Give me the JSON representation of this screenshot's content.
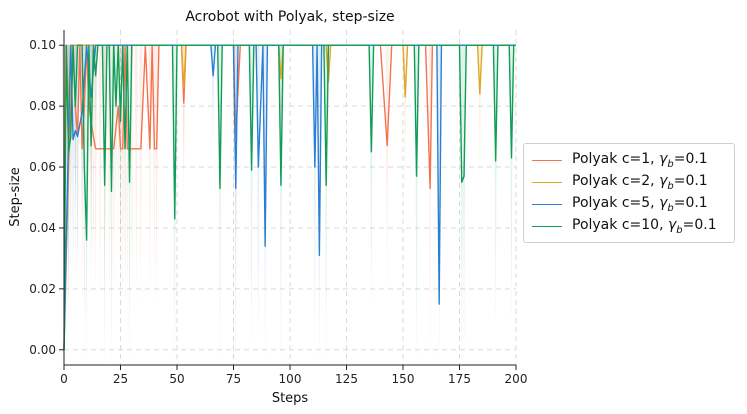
{
  "chart_data": {
    "type": "line",
    "title": "Acrobot with Polyak, step-size",
    "xlabel": "Steps",
    "ylabel": "Step-size",
    "xlim": [
      0,
      200
    ],
    "ylim": [
      -0.005,
      0.105
    ],
    "xticks": [
      "0",
      "25",
      "50",
      "75",
      "100",
      "125",
      "150",
      "175",
      "200"
    ],
    "yticks": [
      "0.00",
      "0.02",
      "0.04",
      "0.06",
      "0.08",
      "0.10"
    ],
    "grid": true,
    "legend_position": "right-outside",
    "series": [
      {
        "name": "Polyak c=1, γb=0.1",
        "label_main": "Polyak c=1, ",
        "label_gamma": "γ",
        "label_sub": "b",
        "label_tail": "=0.1",
        "color": "#f4734f",
        "band_color": "#f4734f",
        "x": [
          0,
          2,
          3,
          4,
          5,
          6,
          7,
          8,
          9,
          10,
          11,
          12,
          13,
          14,
          16,
          18,
          20,
          22,
          24,
          25,
          26,
          27,
          28,
          30,
          32,
          34,
          36,
          38,
          39,
          40,
          41,
          42,
          44,
          46,
          48,
          52,
          53,
          54,
          60,
          70,
          75,
          76,
          78,
          90,
          92,
          100,
          110,
          120,
          125,
          140,
          143,
          145,
          160,
          162,
          163,
          170,
          185,
          200
        ],
        "y": [
          0.0,
          0.06,
          0.08,
          0.1,
          0.08,
          0.07,
          0.1,
          0.066,
          0.08,
          0.1,
          0.08,
          0.075,
          0.07,
          0.066,
          0.066,
          0.066,
          0.066,
          0.066,
          0.08,
          0.066,
          0.066,
          0.1,
          0.066,
          0.066,
          0.066,
          0.066,
          0.1,
          0.066,
          0.1,
          0.066,
          0.066,
          0.1,
          0.1,
          0.1,
          0.1,
          0.1,
          0.081,
          0.1,
          0.1,
          0.1,
          0.1,
          0.07,
          0.1,
          0.1,
          0.1,
          0.1,
          0.1,
          0.1,
          0.1,
          0.1,
          0.067,
          0.1,
          0.1,
          0.053,
          0.1,
          0.1,
          0.1,
          0.1
        ]
      },
      {
        "name": "Polyak c=2, γb=0.1",
        "label_main": "Polyak c=2, ",
        "label_gamma": "γ",
        "label_sub": "b",
        "label_tail": "=0.1",
        "color": "#e0a526",
        "band_color": "#e0a526",
        "x": [
          0,
          1,
          2,
          3,
          4,
          6,
          8,
          10,
          12,
          14,
          16,
          20,
          25,
          30,
          40,
          50,
          52,
          53,
          54,
          60,
          70,
          80,
          90,
          95,
          96,
          97,
          100,
          105,
          110,
          116,
          117,
          118,
          125,
          140,
          150,
          151,
          152,
          160,
          170,
          183,
          184,
          185,
          190,
          200
        ],
        "y": [
          0.05,
          0.1,
          0.08,
          0.1,
          0.1,
          0.1,
          0.1,
          0.1,
          0.1,
          0.1,
          0.1,
          0.1,
          0.1,
          0.1,
          0.1,
          0.1,
          0.1,
          0.086,
          0.1,
          0.1,
          0.1,
          0.1,
          0.1,
          0.1,
          0.089,
          0.1,
          0.1,
          0.1,
          0.1,
          0.1,
          0.088,
          0.1,
          0.1,
          0.1,
          0.1,
          0.083,
          0.1,
          0.1,
          0.1,
          0.1,
          0.084,
          0.1,
          0.1,
          0.1
        ]
      },
      {
        "name": "Polyak c=5, γb=0.1",
        "label_main": "Polyak c=5, ",
        "label_gamma": "γ",
        "label_sub": "b",
        "label_tail": "=0.1",
        "color": "#2a7fd4",
        "band_color": "#2a7fd4",
        "x": [
          0,
          1,
          2,
          3,
          4,
          5,
          6,
          8,
          10,
          12,
          14,
          16,
          18,
          20,
          22,
          24,
          26,
          28,
          30,
          32,
          34,
          40,
          50,
          60,
          65,
          66,
          67,
          70,
          75,
          76,
          77,
          80,
          85,
          86,
          88,
          89,
          90,
          100,
          105,
          110,
          111,
          112,
          113,
          114,
          116,
          118,
          120,
          125,
          150,
          160,
          165,
          166,
          167,
          170,
          200
        ],
        "y": [
          0.0,
          0.036,
          0.07,
          0.1,
          0.069,
          0.072,
          0.07,
          0.078,
          0.1,
          0.083,
          0.1,
          0.1,
          0.1,
          0.1,
          0.1,
          0.1,
          0.1,
          0.1,
          0.1,
          0.1,
          0.1,
          0.1,
          0.1,
          0.1,
          0.1,
          0.09,
          0.1,
          0.1,
          0.1,
          0.053,
          0.1,
          0.1,
          0.1,
          0.06,
          0.1,
          0.034,
          0.1,
          0.1,
          0.1,
          0.1,
          0.06,
          0.1,
          0.031,
          0.1,
          0.1,
          0.1,
          0.1,
          0.1,
          0.1,
          0.1,
          0.1,
          0.015,
          0.1,
          0.1,
          0.1
        ]
      },
      {
        "name": "Polyak c=10, γb=0.1",
        "label_main": "Polyak c=10, ",
        "label_gamma": "γ",
        "label_sub": "b",
        "label_tail": "=0.1",
        "color": "#0f9d58",
        "band_color": "#0f9d58",
        "x": [
          0,
          1,
          2,
          3,
          4,
          5,
          6,
          7,
          8,
          9,
          10,
          11,
          12,
          13,
          14,
          15,
          16,
          17,
          18,
          19,
          20,
          21,
          22,
          23,
          24,
          25,
          26,
          27,
          28,
          29,
          30,
          31,
          32,
          33,
          34,
          36,
          38,
          40,
          45,
          48,
          49,
          50,
          55,
          60,
          68,
          69,
          70,
          80,
          82,
          83,
          84,
          95,
          96,
          97,
          110,
          115,
          116,
          117,
          125,
          135,
          136,
          137,
          145,
          155,
          156,
          157,
          165,
          175,
          176,
          177,
          178,
          190,
          191,
          192,
          197,
          198,
          199,
          200
        ],
        "y": [
          0.0,
          0.1,
          0.065,
          0.07,
          0.1,
          0.08,
          0.1,
          0.1,
          0.1,
          0.06,
          0.036,
          0.1,
          0.067,
          0.1,
          0.09,
          0.1,
          0.1,
          0.1,
          0.054,
          0.1,
          0.1,
          0.052,
          0.1,
          0.08,
          0.1,
          0.075,
          0.1,
          0.066,
          0.1,
          0.055,
          0.1,
          0.1,
          0.1,
          0.1,
          0.1,
          0.1,
          0.1,
          0.1,
          0.1,
          0.1,
          0.043,
          0.1,
          0.1,
          0.1,
          0.1,
          0.053,
          0.1,
          0.1,
          0.1,
          0.059,
          0.1,
          0.1,
          0.054,
          0.1,
          0.1,
          0.1,
          0.054,
          0.1,
          0.1,
          0.1,
          0.065,
          0.1,
          0.1,
          0.1,
          0.057,
          0.1,
          0.1,
          0.1,
          0.055,
          0.057,
          0.1,
          0.1,
          0.062,
          0.1,
          0.1,
          0.063,
          0.1,
          0.1
        ]
      }
    ]
  }
}
